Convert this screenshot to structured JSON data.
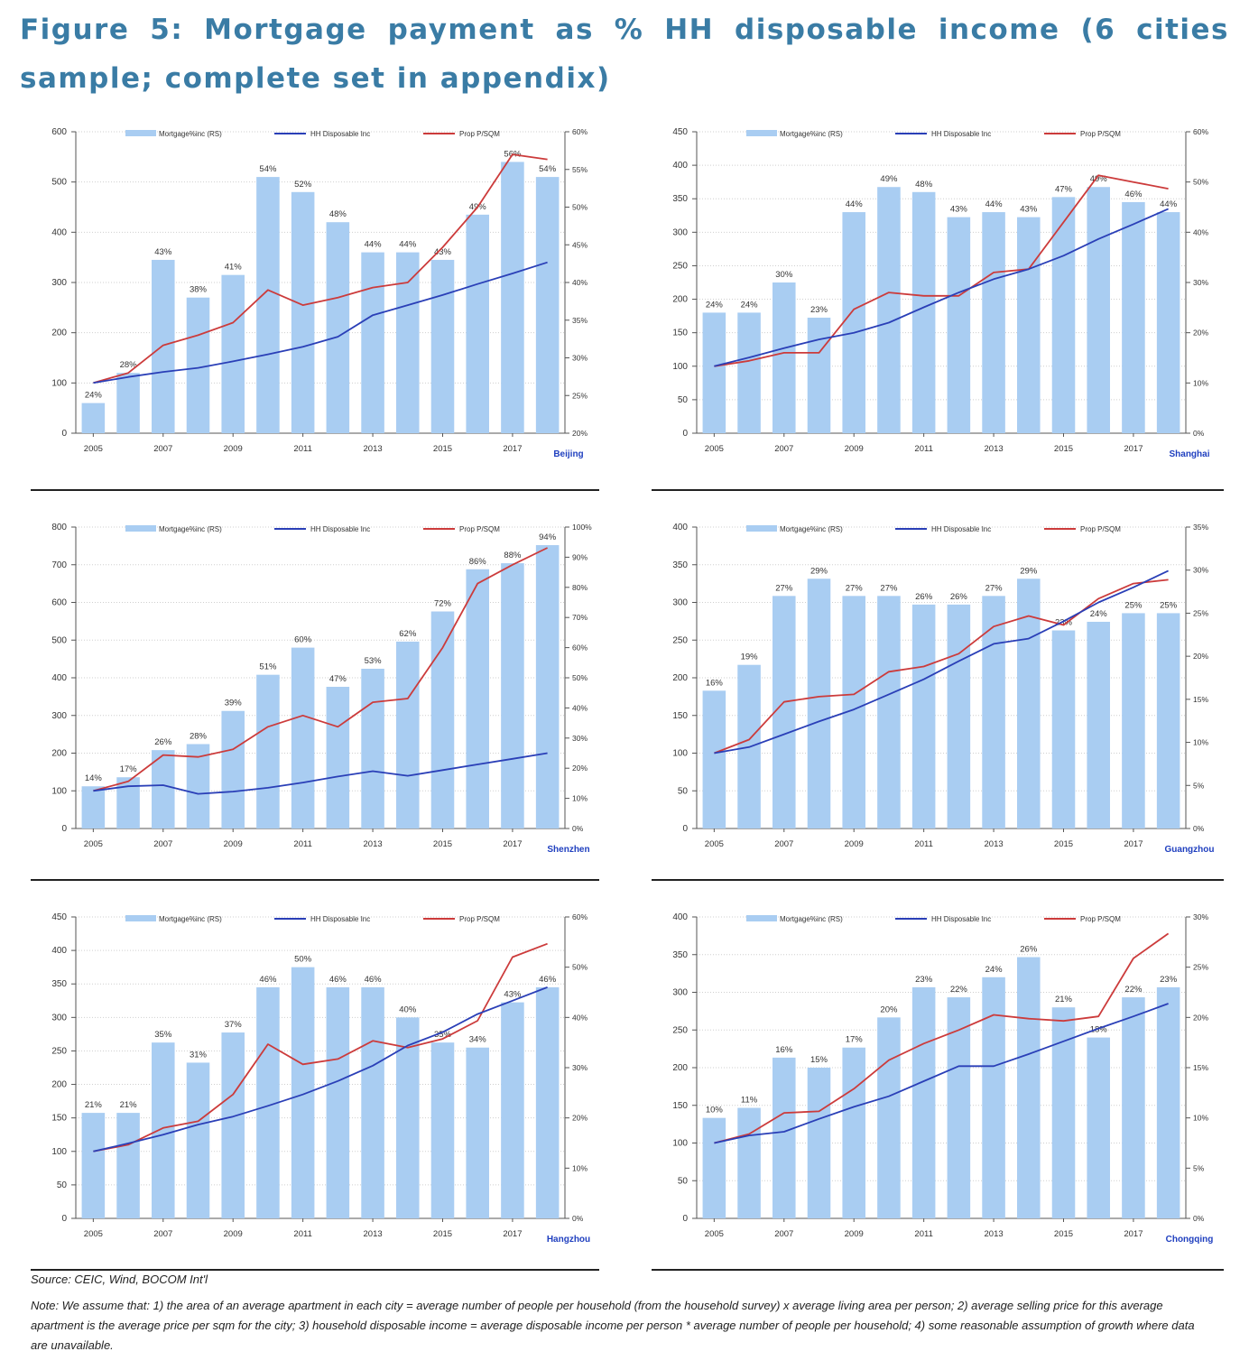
{
  "title": "Figure 5: Mortgage payment as % HH disposable income (6 cities sample; complete set in appendix)",
  "source": "Source: CEIC, Wind, BOCOM Int'l",
  "note": "Note: We assume that: 1) the area of an average apartment in each city = average number of people per household (from the household survey) x average living area per person; 2) average selling price for this average apartment is the average price per sqm for the city; 3) household disposable income = average disposable income per person * average number of people per household; 4) some reasonable assumption of growth where data are unavailable.",
  "colors": {
    "bar": "#a9cdf2",
    "hh": "#2a3fb7",
    "prop": "#cc3b3b",
    "title": "#3a7ca5",
    "city": "#1f3fbf"
  },
  "chart_data": [
    {
      "type": "bar",
      "city": "Beijing",
      "x": [
        "2005",
        "2006",
        "2007",
        "2008",
        "2009",
        "2010",
        "2011",
        "2012",
        "2013",
        "2014",
        "2015",
        "2016",
        "2017",
        "2018"
      ],
      "x_tick_labels": [
        "2005",
        "2007",
        "2009",
        "2011",
        "2013",
        "2015",
        "2017"
      ],
      "legend": [
        "Mortgage%inc (RS)",
        "HH Disposable Inc",
        "Prop P/SQM"
      ],
      "y_left_ticks": [
        0,
        100,
        200,
        300,
        400,
        500,
        600
      ],
      "y_right_ticks": [
        "20%",
        "25%",
        "30%",
        "35%",
        "40%",
        "45%",
        "50%",
        "55%",
        "60%"
      ],
      "ylim_left": [
        0,
        600
      ],
      "ylim_right": [
        20,
        60
      ],
      "series": [
        {
          "name": "Mortgage%inc (RS)",
          "axis": "right",
          "values": [
            24,
            28,
            43,
            38,
            41,
            54,
            52,
            48,
            44,
            44,
            43,
            49,
            56,
            54
          ]
        },
        {
          "name": "HH Disposable Inc",
          "axis": "left",
          "values": [
            100,
            112,
            122,
            130,
            143,
            157,
            172,
            192,
            235,
            255,
            275,
            297,
            318,
            340
          ]
        },
        {
          "name": "Prop P/SQM",
          "axis": "left",
          "values": [
            100,
            120,
            175,
            195,
            220,
            285,
            255,
            270,
            290,
            300,
            370,
            450,
            555,
            545
          ]
        }
      ],
      "bar_labels": [
        "24%",
        "28%",
        "43%",
        "38%",
        "41%",
        "54%",
        "52%",
        "48%",
        "44%",
        "44%",
        "43%",
        "49%",
        "56%",
        "54%"
      ]
    },
    {
      "type": "bar",
      "city": "Shanghai",
      "x": [
        "2005",
        "2006",
        "2007",
        "2008",
        "2009",
        "2010",
        "2011",
        "2012",
        "2013",
        "2014",
        "2015",
        "2016",
        "2017",
        "2018"
      ],
      "x_tick_labels": [
        "2005",
        "2007",
        "2009",
        "2011",
        "2013",
        "2015",
        "2017"
      ],
      "legend": [
        "Mortgage%inc (RS)",
        "HH Disposable Inc",
        "Prop P/SQM"
      ],
      "y_left_ticks": [
        0,
        50,
        100,
        150,
        200,
        250,
        300,
        350,
        400,
        450
      ],
      "y_right_ticks": [
        "0%",
        "10%",
        "20%",
        "30%",
        "40%",
        "50%",
        "60%"
      ],
      "ylim_left": [
        0,
        450
      ],
      "ylim_right": [
        0,
        60
      ],
      "series": [
        {
          "name": "Mortgage%inc (RS)",
          "axis": "right",
          "values": [
            24,
            24,
            30,
            23,
            44,
            49,
            48,
            43,
            44,
            43,
            47,
            49,
            46,
            44
          ]
        },
        {
          "name": "HH Disposable Inc",
          "axis": "left",
          "values": [
            100,
            113,
            127,
            140,
            150,
            165,
            188,
            210,
            230,
            245,
            265,
            290,
            312,
            335
          ]
        },
        {
          "name": "Prop P/SQM",
          "axis": "left",
          "values": [
            100,
            108,
            120,
            120,
            185,
            210,
            205,
            205,
            240,
            245,
            315,
            385,
            375,
            365
          ]
        }
      ],
      "bar_labels": [
        "24%",
        "24%",
        "30%",
        "23%",
        "44%",
        "49%",
        "48%",
        "43%",
        "44%",
        "43%",
        "47%",
        "49%",
        "46%",
        "44%"
      ]
    },
    {
      "type": "bar",
      "city": "Shenzhen",
      "x": [
        "2005",
        "2006",
        "2007",
        "2008",
        "2009",
        "2010",
        "2011",
        "2012",
        "2013",
        "2014",
        "2015",
        "2016",
        "2017",
        "2018"
      ],
      "x_tick_labels": [
        "2005",
        "2007",
        "2009",
        "2011",
        "2013",
        "2015",
        "2017"
      ],
      "legend": [
        "Mortgage%inc (RS)",
        "HH Disposable Inc",
        "Prop P/SQM"
      ],
      "y_left_ticks": [
        0,
        100,
        200,
        300,
        400,
        500,
        600,
        700,
        800
      ],
      "y_right_ticks": [
        "0%",
        "10%",
        "20%",
        "30%",
        "40%",
        "50%",
        "60%",
        "70%",
        "80%",
        "90%",
        "100%"
      ],
      "ylim_left": [
        0,
        800
      ],
      "ylim_right": [
        0,
        100
      ],
      "series": [
        {
          "name": "Mortgage%inc (RS)",
          "axis": "right",
          "values": [
            14,
            17,
            26,
            28,
            39,
            51,
            60,
            47,
            53,
            62,
            72,
            86,
            88,
            94
          ]
        },
        {
          "name": "HH Disposable Inc",
          "axis": "left",
          "values": [
            100,
            112,
            115,
            92,
            98,
            108,
            122,
            138,
            152,
            140,
            155,
            170,
            185,
            200
          ]
        },
        {
          "name": "Prop P/SQM",
          "axis": "left",
          "values": [
            100,
            125,
            195,
            190,
            210,
            270,
            300,
            270,
            335,
            345,
            480,
            650,
            700,
            745
          ]
        }
      ],
      "bar_labels": [
        "14%",
        "17%",
        "26%",
        "28%",
        "39%",
        "51%",
        "60%",
        "47%",
        "53%",
        "62%",
        "72%",
        "86%",
        "88%",
        "94%"
      ]
    },
    {
      "type": "bar",
      "city": "Guangzhou",
      "x": [
        "2005",
        "2006",
        "2007",
        "2008",
        "2009",
        "2010",
        "2011",
        "2012",
        "2013",
        "2014",
        "2015",
        "2016",
        "2017",
        "2018"
      ],
      "x_tick_labels": [
        "2005",
        "2007",
        "2009",
        "2011",
        "2013",
        "2015",
        "2017"
      ],
      "legend": [
        "Mortgage%inc (RS)",
        "HH Disposable Inc",
        "Prop P/SQM"
      ],
      "y_left_ticks": [
        0,
        50,
        100,
        150,
        200,
        250,
        300,
        350,
        400
      ],
      "y_right_ticks": [
        "0%",
        "5%",
        "10%",
        "15%",
        "20%",
        "25%",
        "30%",
        "35%"
      ],
      "ylim_left": [
        0,
        400
      ],
      "ylim_right": [
        0,
        35
      ],
      "series": [
        {
          "name": "Mortgage%inc (RS)",
          "axis": "right",
          "values": [
            16,
            19,
            27,
            29,
            27,
            27,
            26,
            26,
            27,
            29,
            23,
            24,
            25,
            25
          ]
        },
        {
          "name": "HH Disposable Inc",
          "axis": "left",
          "values": [
            100,
            108,
            125,
            142,
            158,
            178,
            198,
            222,
            245,
            252,
            275,
            300,
            320,
            342
          ]
        },
        {
          "name": "Prop P/SQM",
          "axis": "left",
          "values": [
            100,
            118,
            168,
            175,
            178,
            208,
            215,
            232,
            268,
            282,
            270,
            305,
            325,
            330
          ]
        }
      ],
      "bar_labels": [
        "16%",
        "19%",
        "27%",
        "29%",
        "27%",
        "27%",
        "26%",
        "26%",
        "27%",
        "29%",
        "23%",
        "24%",
        "25%",
        "25%"
      ]
    },
    {
      "type": "bar",
      "city": "Hangzhou",
      "x": [
        "2005",
        "2006",
        "2007",
        "2008",
        "2009",
        "2010",
        "2011",
        "2012",
        "2013",
        "2014",
        "2015",
        "2016",
        "2017",
        "2018"
      ],
      "x_tick_labels": [
        "2005",
        "2007",
        "2009",
        "2011",
        "2013",
        "2015",
        "2017"
      ],
      "legend": [
        "Mortgage%inc (RS)",
        "HH Disposable Inc",
        "Prop P/SQM"
      ],
      "y_left_ticks": [
        0,
        50,
        100,
        150,
        200,
        250,
        300,
        350,
        400,
        450
      ],
      "y_right_ticks": [
        "0%",
        "10%",
        "20%",
        "30%",
        "40%",
        "50%",
        "60%"
      ],
      "ylim_left": [
        0,
        450
      ],
      "ylim_right": [
        0,
        60
      ],
      "series": [
        {
          "name": "Mortgage%inc (RS)",
          "axis": "right",
          "values": [
            21,
            21,
            35,
            31,
            37,
            46,
            50,
            46,
            46,
            40,
            35,
            34,
            43,
            46
          ]
        },
        {
          "name": "HH Disposable Inc",
          "axis": "left",
          "values": [
            100,
            112,
            125,
            140,
            152,
            168,
            185,
            205,
            228,
            258,
            278,
            305,
            325,
            345
          ]
        },
        {
          "name": "Prop P/SQM",
          "axis": "left",
          "values": [
            100,
            110,
            135,
            145,
            185,
            260,
            230,
            238,
            265,
            255,
            268,
            295,
            390,
            410
          ]
        }
      ],
      "bar_labels": [
        "21%",
        "21%",
        "35%",
        "31%",
        "37%",
        "46%",
        "50%",
        "46%",
        "46%",
        "40%",
        "35%",
        "34%",
        "43%",
        "46%"
      ]
    },
    {
      "type": "bar",
      "city": "Chongqing",
      "x": [
        "2005",
        "2006",
        "2007",
        "2008",
        "2009",
        "2010",
        "2011",
        "2012",
        "2013",
        "2014",
        "2015",
        "2016",
        "2017",
        "2018"
      ],
      "x_tick_labels": [
        "2005",
        "2007",
        "2009",
        "2011",
        "2013",
        "2015",
        "2017"
      ],
      "legend": [
        "Mortgage%inc (RS)",
        "HH Disposable Inc",
        "Prop P/SQM"
      ],
      "y_left_ticks": [
        0,
        50,
        100,
        150,
        200,
        250,
        300,
        350,
        400
      ],
      "y_right_ticks": [
        "0%",
        "5%",
        "10%",
        "15%",
        "20%",
        "25%",
        "30%"
      ],
      "ylim_left": [
        0,
        400
      ],
      "ylim_right": [
        0,
        30
      ],
      "series": [
        {
          "name": "Mortgage%inc (RS)",
          "axis": "right",
          "values": [
            10,
            11,
            16,
            15,
            17,
            20,
            23,
            22,
            24,
            26,
            21,
            18,
            22,
            23
          ]
        },
        {
          "name": "HH Disposable Inc",
          "axis": "left",
          "values": [
            100,
            110,
            115,
            132,
            148,
            162,
            182,
            202,
            202,
            218,
            235,
            252,
            268,
            285
          ]
        },
        {
          "name": "Prop P/SQM",
          "axis": "left",
          "values": [
            100,
            112,
            140,
            142,
            172,
            210,
            232,
            250,
            270,
            265,
            262,
            268,
            345,
            378
          ]
        }
      ],
      "bar_labels": [
        "10%",
        "11%",
        "16%",
        "15%",
        "17%",
        "20%",
        "23%",
        "22%",
        "24%",
        "26%",
        "21%",
        "18%",
        "22%",
        "23%"
      ]
    }
  ]
}
